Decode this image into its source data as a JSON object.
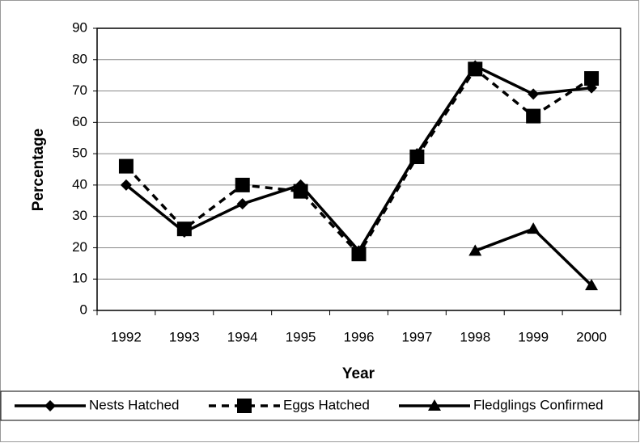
{
  "chart_data": {
    "type": "line",
    "x_label": "Year",
    "y_label": "Percentage",
    "categories": [
      "1992",
      "1993",
      "1994",
      "1995",
      "1996",
      "1997",
      "1998",
      "1999",
      "2000"
    ],
    "series": [
      {
        "name": "Nests Hatched",
        "color": "#000000",
        "marker": "diamond",
        "dashed": false,
        "values": [
          40,
          25,
          34,
          40,
          19,
          50,
          78,
          69,
          71
        ]
      },
      {
        "name": "Eggs Hatched",
        "color": "#000000",
        "marker": "square",
        "dashed": true,
        "values": [
          46,
          26,
          40,
          38,
          18,
          49,
          77,
          62,
          74
        ]
      },
      {
        "name": "Fledglings Confirmed",
        "color": "#000000",
        "marker": "triangle",
        "dashed": false,
        "values": [
          null,
          null,
          null,
          null,
          null,
          null,
          19,
          26,
          8
        ]
      }
    ],
    "ylim": [
      0,
      90
    ],
    "yticks": [
      0,
      10,
      20,
      30,
      40,
      50,
      60,
      70,
      80,
      90
    ],
    "grid": true,
    "legend": "bottom"
  }
}
